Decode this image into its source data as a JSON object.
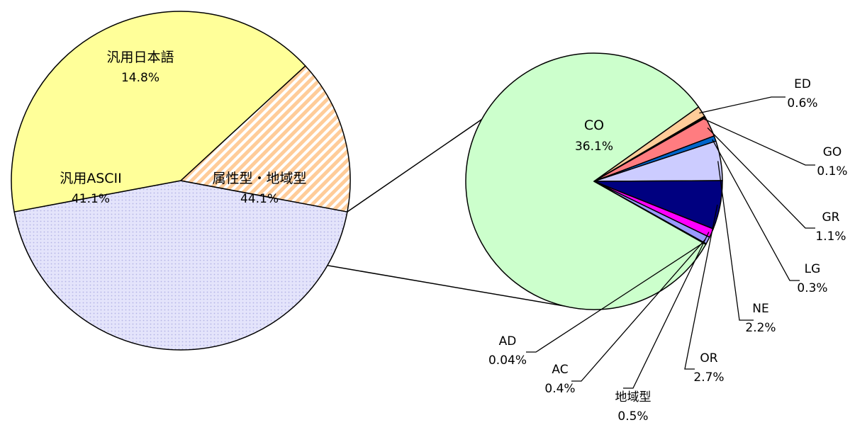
{
  "chart_data": [
    {
      "type": "pie",
      "slices": [
        {
          "label": "属性型・地域型",
          "value": 44.1,
          "value_label": "44.1%",
          "color": "#d9d9f5",
          "pattern": "dots"
        },
        {
          "label": "汎用ASCII",
          "value": 41.1,
          "value_label": "41.1%",
          "color": "#ffff99"
        },
        {
          "label": "汎用日本語",
          "value": 14.8,
          "value_label": "14.8%",
          "color": "#ffcc99",
          "pattern": "stripes"
        }
      ]
    },
    {
      "type": "pie",
      "slices": [
        {
          "label": "CO",
          "value": 36.1,
          "value_label": "36.1%",
          "color": "#ccffcc"
        },
        {
          "label": "ED",
          "value": 0.6,
          "value_label": "0.6%",
          "color": "#ffcc99"
        },
        {
          "label": "GO",
          "value": 0.1,
          "value_label": "0.1%",
          "color": "#000000"
        },
        {
          "label": "GR",
          "value": 1.1,
          "value_label": "1.1%",
          "color": "#ff7c80"
        },
        {
          "label": "LG",
          "value": 0.3,
          "value_label": "0.3%",
          "color": "#0066cc"
        },
        {
          "label": "NE",
          "value": 2.2,
          "value_label": "2.2%",
          "color": "#ccccff"
        },
        {
          "label": "OR",
          "value": 2.7,
          "value_label": "2.7%",
          "color": "#000080"
        },
        {
          "label": "地域型",
          "value": 0.5,
          "value_label": "0.5%",
          "color": "#ff00ff"
        },
        {
          "label": "AC",
          "value": 0.4,
          "value_label": "0.4%",
          "color": "#9999ff"
        },
        {
          "label": "AD",
          "value": 0.04,
          "value_label": "0.04%",
          "color": "#ccccff"
        }
      ]
    }
  ]
}
